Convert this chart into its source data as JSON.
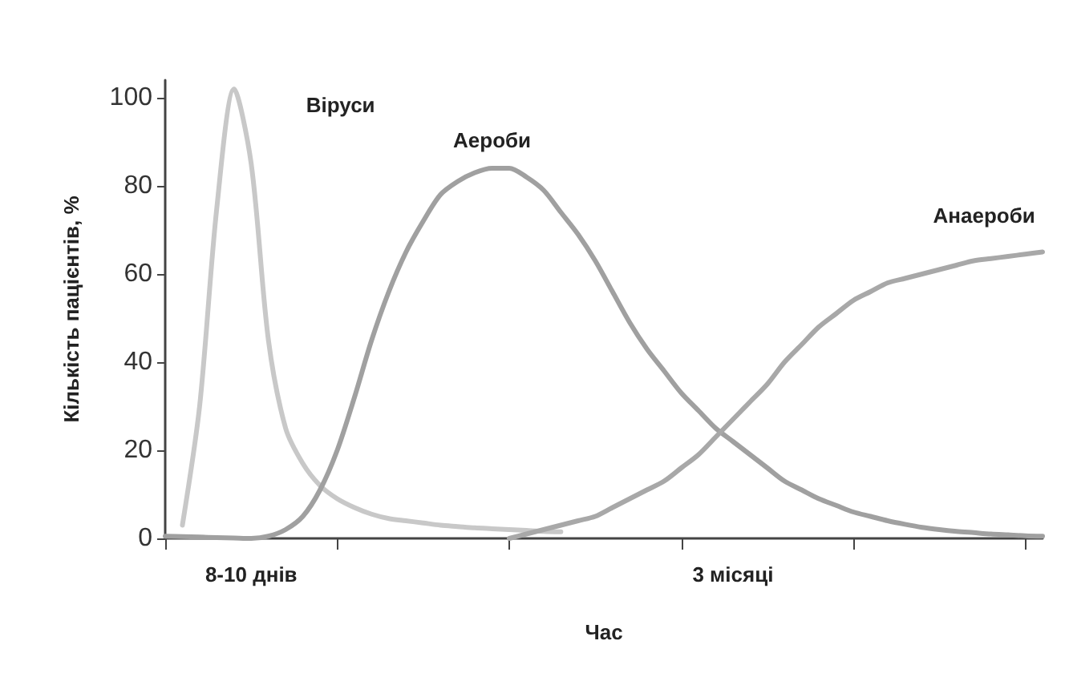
{
  "chart_data": {
    "type": "line",
    "xlabel": "Час",
    "ylabel": "Кількість пацієнтів, %",
    "categories": [
      null,
      null,
      null,
      null,
      null,
      "8-10 днів",
      null,
      null,
      null,
      null,
      null,
      null,
      null,
      null,
      null,
      null,
      null,
      null,
      null,
      null,
      null,
      null,
      null,
      null,
      null,
      null,
      null,
      null,
      null,
      null,
      null,
      null,
      null,
      "3 місяці",
      null,
      null,
      null,
      null,
      null,
      null,
      null,
      null,
      null,
      null,
      null,
      null,
      null,
      null,
      null,
      null,
      null,
      null
    ],
    "ylim": [
      0,
      104
    ],
    "yticks": [
      0,
      20,
      40,
      60,
      80,
      100
    ],
    "grid": false,
    "legend": false,
    "marker": "none",
    "line_style": "solid",
    "series": [
      {
        "name": "Віруси",
        "color": "#c8c8c8",
        "values": [
          null,
          3,
          30,
          75,
          102,
          85,
          45,
          25,
          17,
          12,
          9,
          7,
          5.5,
          4.5,
          4,
          3.5,
          3,
          2.7,
          2.4,
          2.2,
          2,
          1.8,
          1.6,
          1.5,
          null,
          null,
          null,
          null,
          null,
          null,
          null,
          null,
          null,
          null,
          null,
          null,
          null,
          null,
          null,
          null,
          null,
          null,
          null,
          null,
          null,
          null,
          null,
          null,
          null,
          null,
          null,
          null
        ]
      },
      {
        "name": "Аероби",
        "color": "#a0a0a0",
        "values": [
          0.5,
          0.4,
          0.3,
          0.2,
          0.1,
          0,
          0.5,
          2,
          5,
          11,
          20,
          32,
          45,
          56,
          65,
          72,
          78,
          81,
          83,
          84,
          84,
          82,
          79,
          74,
          69,
          63,
          56,
          49,
          43,
          38,
          33,
          29,
          25,
          22,
          19,
          16,
          13,
          11,
          9,
          7.5,
          6,
          5,
          4,
          3.2,
          2.5,
          2,
          1.6,
          1.3,
          1,
          0.8,
          0.6,
          0.5
        ]
      },
      {
        "name": "Анаероби",
        "color": "#a8a8a8",
        "values": [
          null,
          null,
          null,
          null,
          null,
          null,
          null,
          null,
          null,
          null,
          null,
          null,
          null,
          null,
          null,
          null,
          null,
          null,
          null,
          null,
          0,
          1,
          2,
          3,
          4,
          5,
          7,
          9,
          11,
          13,
          16,
          19,
          23,
          27,
          31,
          35,
          40,
          44,
          48,
          51,
          54,
          56,
          58,
          59,
          60,
          61,
          62,
          63,
          63.5,
          64,
          64.5,
          65
        ]
      }
    ]
  }
}
